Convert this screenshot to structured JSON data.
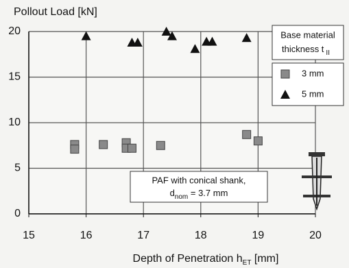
{
  "chart_data": {
    "type": "scatter",
    "title": "Pollout Load [kN]",
    "xlabel": {
      "text": "Depth of Penetration h",
      "sub": "ET",
      "after": " [mm]"
    },
    "xlim": [
      15,
      20
    ],
    "xticks": [
      15,
      16,
      17,
      18,
      19,
      20
    ],
    "ylim": [
      0,
      20
    ],
    "yticks": [
      0,
      5,
      10,
      15,
      20
    ],
    "grid": true,
    "legend_title": {
      "line1": "Base material",
      "line2": "thickness t",
      "sub": "II"
    },
    "annotation": {
      "line1": "PAF with conical shank,",
      "line2": "d",
      "sub": "nom",
      "after": " = 3.7 mm"
    },
    "series": [
      {
        "name": "3 mm",
        "marker": "square",
        "color": "#8a8a8a",
        "x": [
          15.8,
          15.8,
          16.3,
          16.7,
          16.7,
          16.8,
          17.3,
          18.8,
          19.0
        ],
        "values": [
          7.6,
          7.1,
          7.6,
          7.8,
          7.2,
          7.2,
          7.5,
          8.7,
          8.0
        ]
      },
      {
        "name": "5 mm",
        "marker": "triangle",
        "color": "#111111",
        "x": [
          16.0,
          16.8,
          16.9,
          17.4,
          17.5,
          17.9,
          18.1,
          18.2,
          18.8
        ],
        "values": [
          19.5,
          18.8,
          18.8,
          20.0,
          19.5,
          18.1,
          18.9,
          18.9,
          19.3
        ]
      }
    ]
  }
}
